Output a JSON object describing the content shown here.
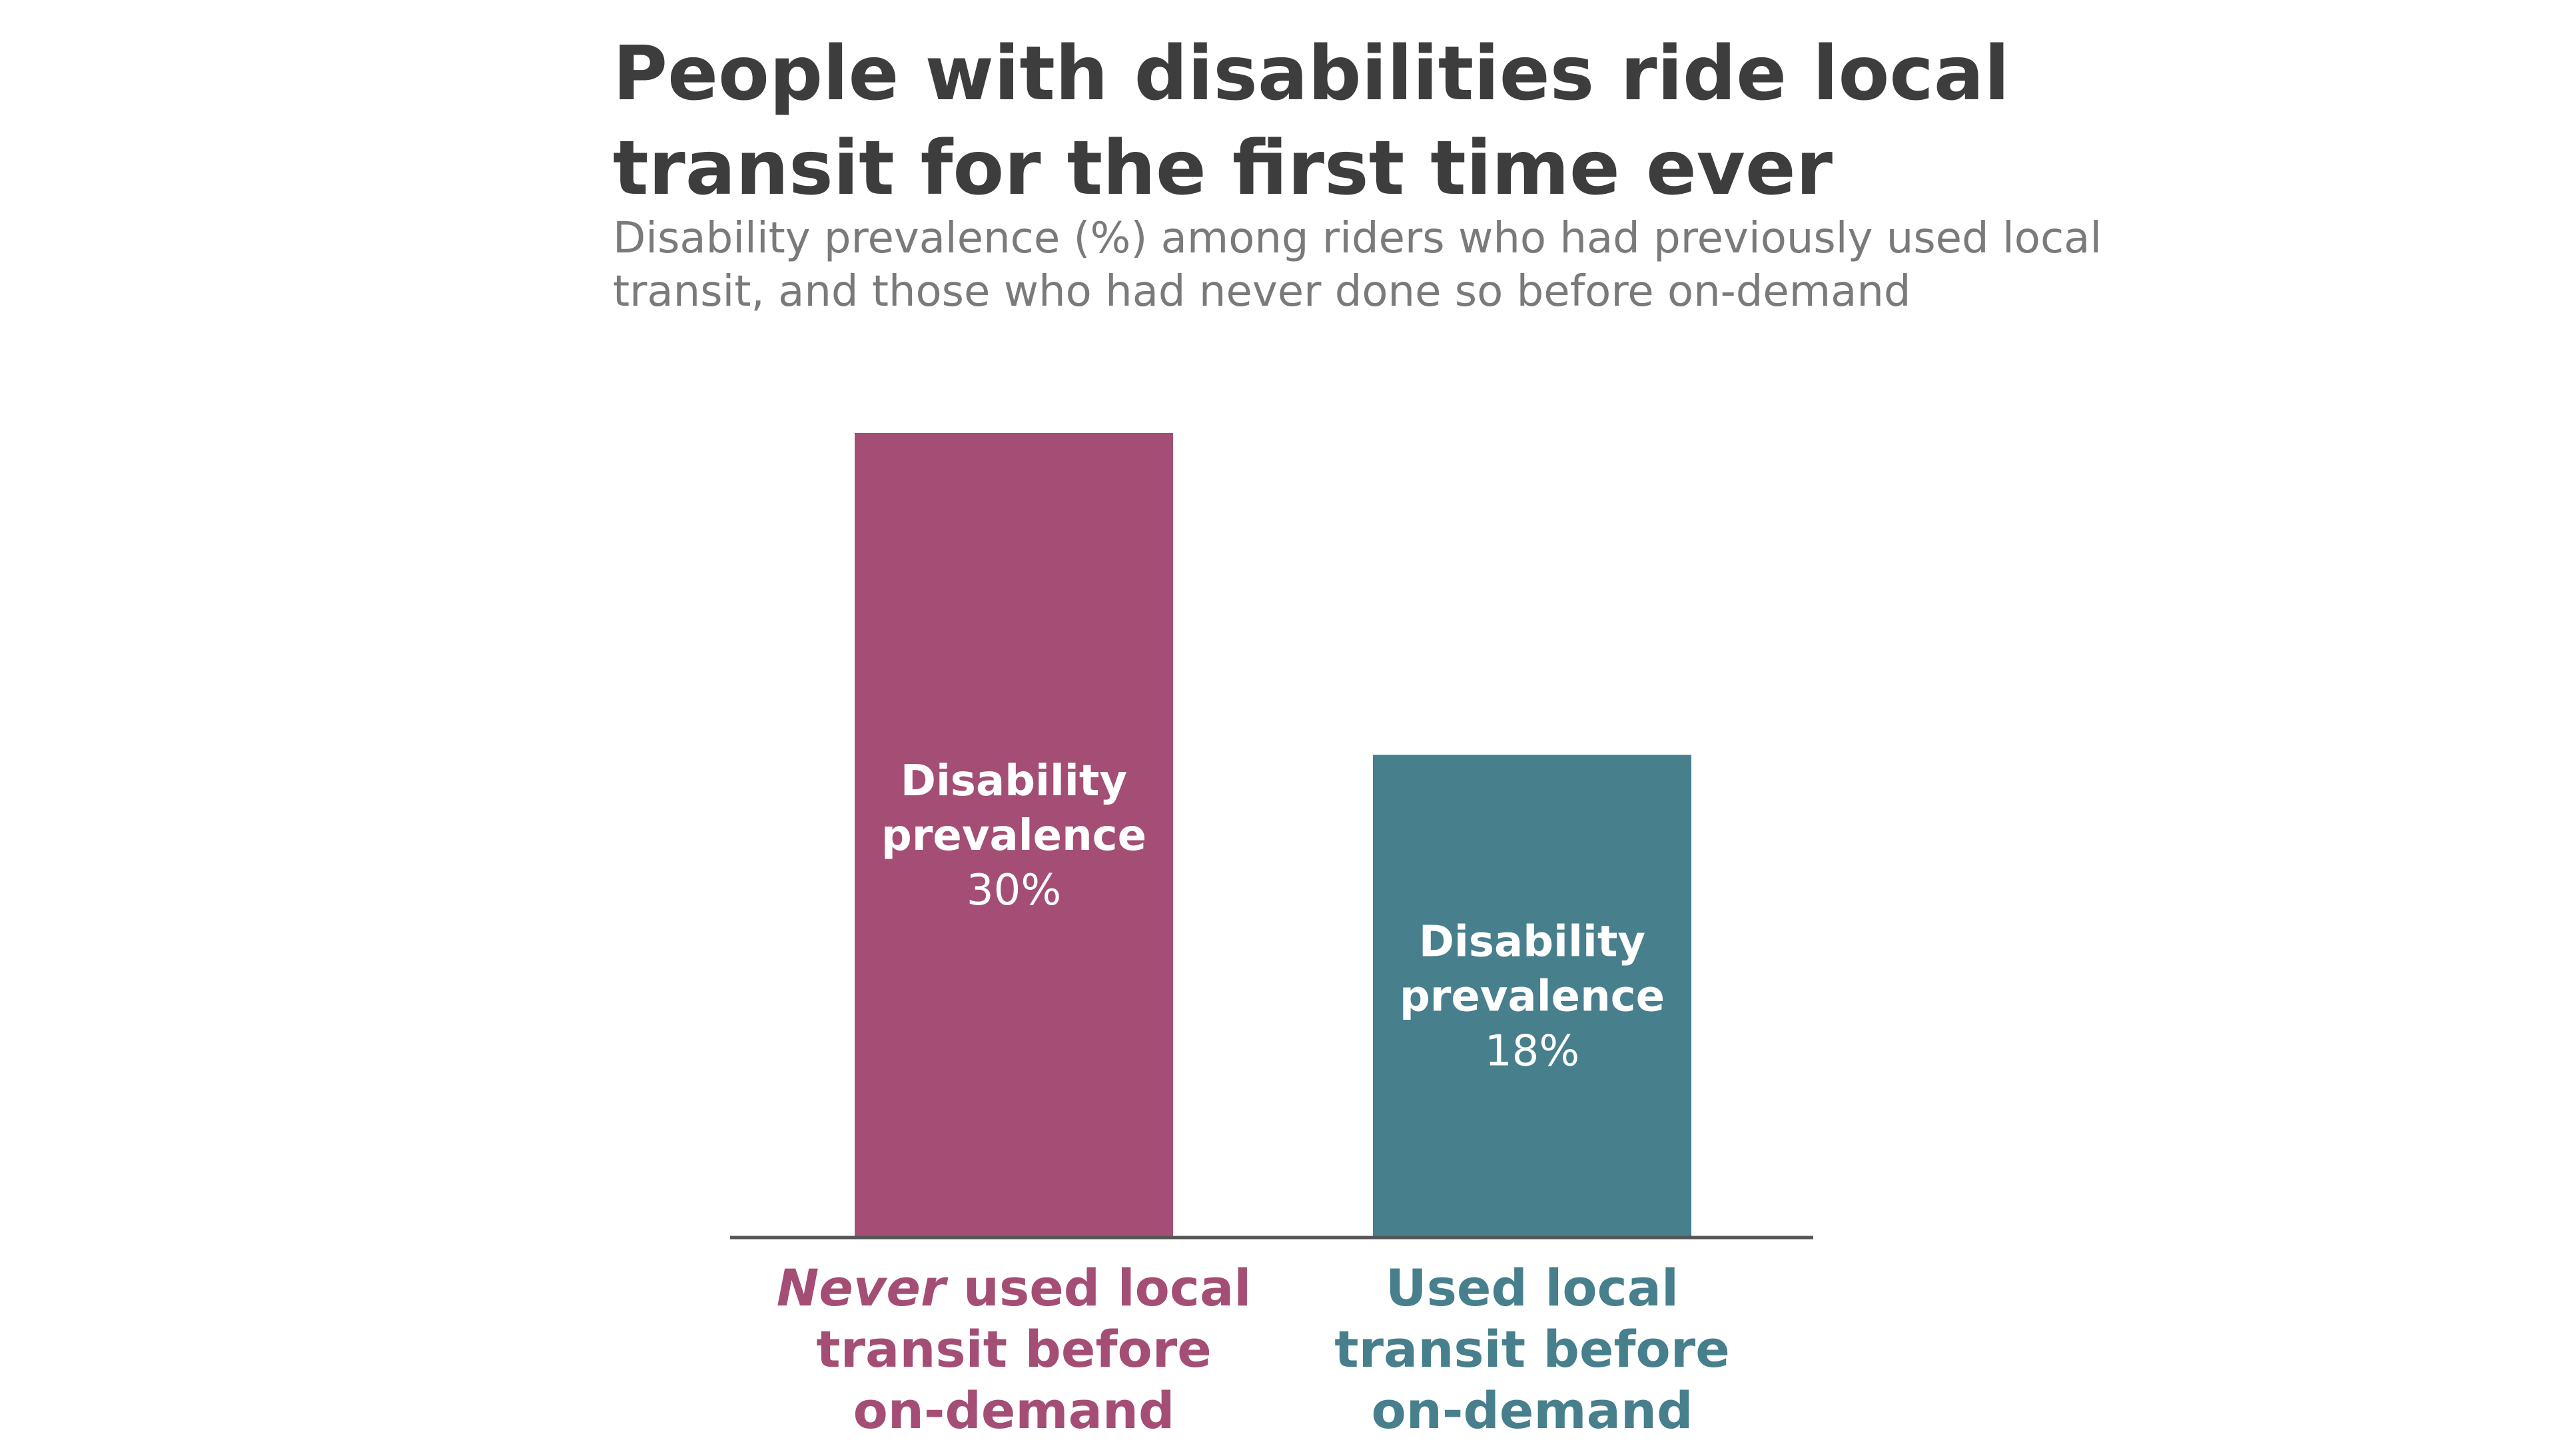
{
  "header": {
    "title": "People with disabilities ride local transit for the first time ever",
    "subtitle": "Disability prevalence (%) among riders who had previously used local transit, and those who had never done so before on-demand"
  },
  "colors": {
    "never": "#a44e75",
    "used": "#477f8c",
    "axis": "#555555"
  },
  "chart_data": {
    "type": "bar",
    "title": "People with disabilities ride local transit for the first time ever",
    "subtitle": "Disability prevalence (%) among riders who had previously used local transit, and those who had never done so before on-demand",
    "ylim": [
      0,
      30
    ],
    "grid": false,
    "categories": [
      {
        "label_lines": [
          [
            {
              "text": "Never",
              "italic": true
            },
            {
              "text": " used local",
              "italic": false
            }
          ],
          [
            {
              "text": "transit before",
              "italic": false
            }
          ],
          [
            {
              "text": "on-demand",
              "italic": false
            }
          ]
        ],
        "value": 30,
        "bar_label_lines": [
          "Disability",
          "prevalence"
        ],
        "value_label": "30%",
        "color": "#a44e75"
      },
      {
        "label_lines": [
          [
            {
              "text": "Used local",
              "italic": false
            }
          ],
          [
            {
              "text": "transit before",
              "italic": false
            }
          ],
          [
            {
              "text": "on-demand",
              "italic": false
            }
          ]
        ],
        "value": 18,
        "bar_label_lines": [
          "Disability",
          "prevalence"
        ],
        "value_label": "18%",
        "color": "#477f8c"
      }
    ]
  }
}
